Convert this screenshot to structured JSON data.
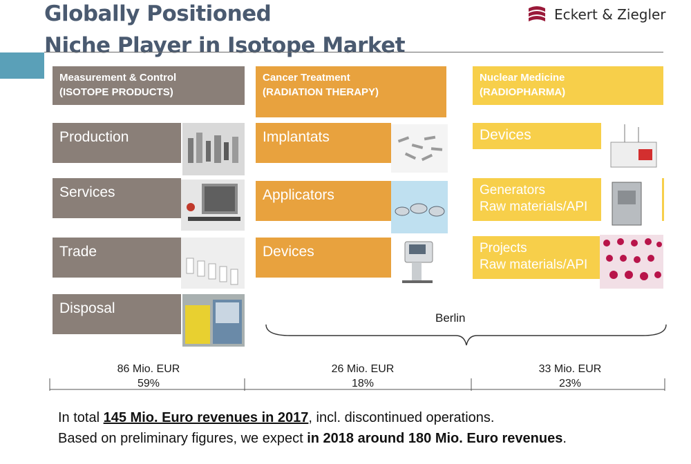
{
  "title": {
    "line1": "Globally Positioned",
    "line2": "Niche Player in Isotope Market"
  },
  "logo": {
    "text": "Eckert & Ziegler",
    "color": "#9a1a3a"
  },
  "columns": [
    {
      "header_line1": "Measurement & Control",
      "header_line2": "(ISOTOPE PRODUCTS)",
      "color": "#8a7f78",
      "items": [
        "Production",
        "Services",
        "Trade",
        "Disposal"
      ],
      "revenue": "86 Mio. EUR",
      "share": "59%"
    },
    {
      "header_line1": "Cancer Treatment",
      "header_line2": "(RADIATION THERAPY)",
      "color": "#e8a23e",
      "items": [
        "Implantats",
        "Applicators",
        "Devices"
      ],
      "revenue": "26 Mio. EUR",
      "share": "18%"
    },
    {
      "header_line1": "Nuclear Medicine",
      "header_line2": "(RADIOPHARMA)",
      "color": "#f7cf4a",
      "items": [
        "Devices",
        "Generators\nRaw materials/API",
        "Projects\nRaw materials/API"
      ],
      "revenue": "33 Mio. EUR",
      "share": "23%"
    }
  ],
  "brace_label": "Berlin",
  "footer": {
    "line1_pre": "In total ",
    "line1_em": "145 Mio. Euro revenues in 2017",
    "line1_post": ", incl. discontinued operations.",
    "line2_pre": "Based on preliminary figures, we expect ",
    "line2_em": "in 2018 around 180 Mio. Euro revenues",
    "line2_post": "."
  }
}
